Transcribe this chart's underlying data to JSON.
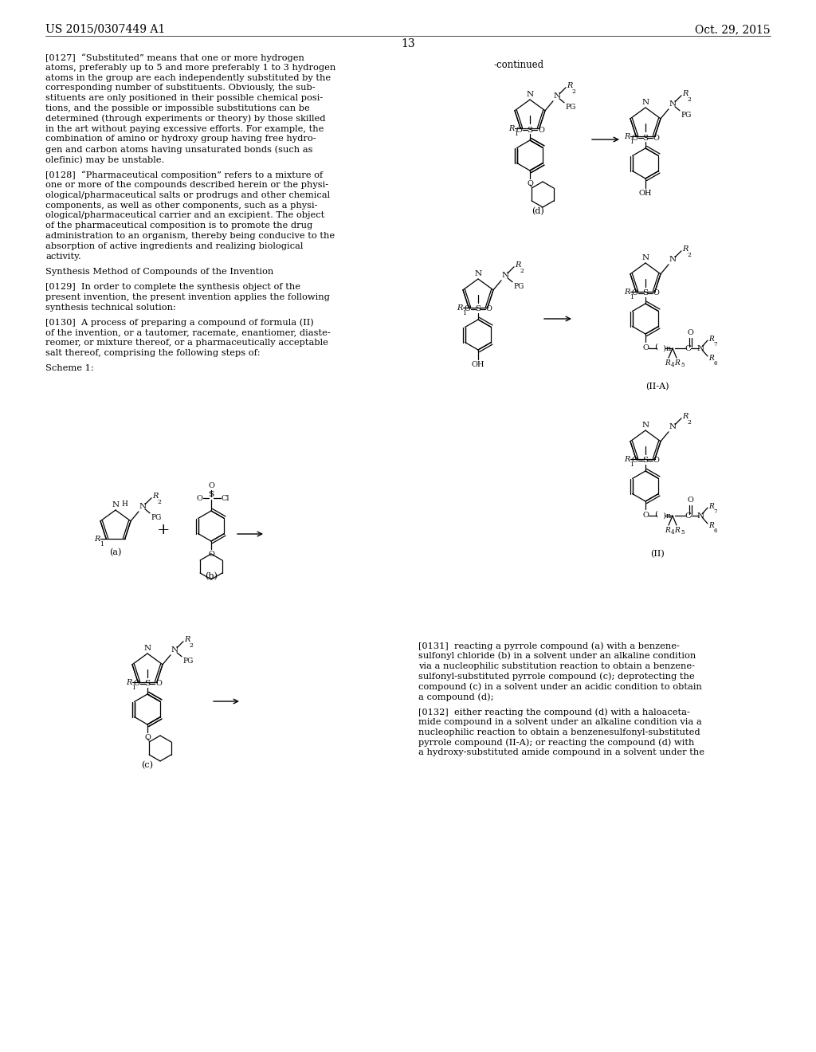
{
  "bg": "#ffffff",
  "header_left": "US 2015/0307449 A1",
  "header_right": "Oct. 29, 2015",
  "page_num": "13",
  "left_col_lines": [
    "[0127]  “Substituted” means that one or more hydrogen",
    "atoms, preferably up to 5 and more preferably 1 to 3 hydrogen",
    "atoms in the group are each independently substituted by the",
    "corresponding number of substituents. Obviously, the sub-",
    "stituents are only positioned in their possible chemical posi-",
    "tions, and the possible or impossible substitutions can be",
    "determined (through experiments or theory) by those skilled",
    "in the art without paying excessive efforts. For example, the",
    "combination of amino or hydroxy group having free hydro-",
    "gen and carbon atoms having unsaturated bonds (such as",
    "olefinic) may be unstable.",
    "",
    "[0128]  “Pharmaceutical composition” refers to a mixture of",
    "one or more of the compounds described herein or the physi-",
    "ological/pharmaceutical salts or prodrugs and other chemical",
    "components, as well as other components, such as a physi-",
    "ological/pharmaceutical carrier and an excipient. The object",
    "of the pharmaceutical composition is to promote the drug",
    "administration to an organism, thereby being conducive to the",
    "absorption of active ingredients and realizing biological",
    "activity.",
    "",
    "Synthesis Method of Compounds of the Invention",
    "",
    "[0129]  In order to complete the synthesis object of the",
    "present invention, the present invention applies the following",
    "synthesis technical solution:",
    "",
    "[0130]  A process of preparing a compound of formula (II)",
    "of the invention, or a tautomer, racemate, enantiomer, diaste-",
    "reomer, or mixture thereof, or a pharmaceutically acceptable",
    "salt thereof, comprising the following steps of:",
    "",
    "Scheme 1:"
  ],
  "right_col_lines_bottom": [
    "[0131]  reacting a pyrrole compound (a) with a benzene-",
    "sulfonyl chloride (b) in a solvent under an alkaline condition",
    "via a nucleophilic substitution reaction to obtain a benzene-",
    "sulfonyl-substituted pyrrole compound (c); deprotecting the",
    "compound (c) in a solvent under an acidic condition to obtain",
    "a compound (d);",
    "",
    "[0132]  either reacting the compound (d) with a haloaceta-",
    "mide compound in a solvent under an alkaline condition via a",
    "nucleophilic reaction to obtain a benzenesulfonyl-substituted",
    "pyrrole compound (II-A); or reacting the compound (d) with",
    "a hydroxy-substituted amide compound in a solvent under the"
  ]
}
